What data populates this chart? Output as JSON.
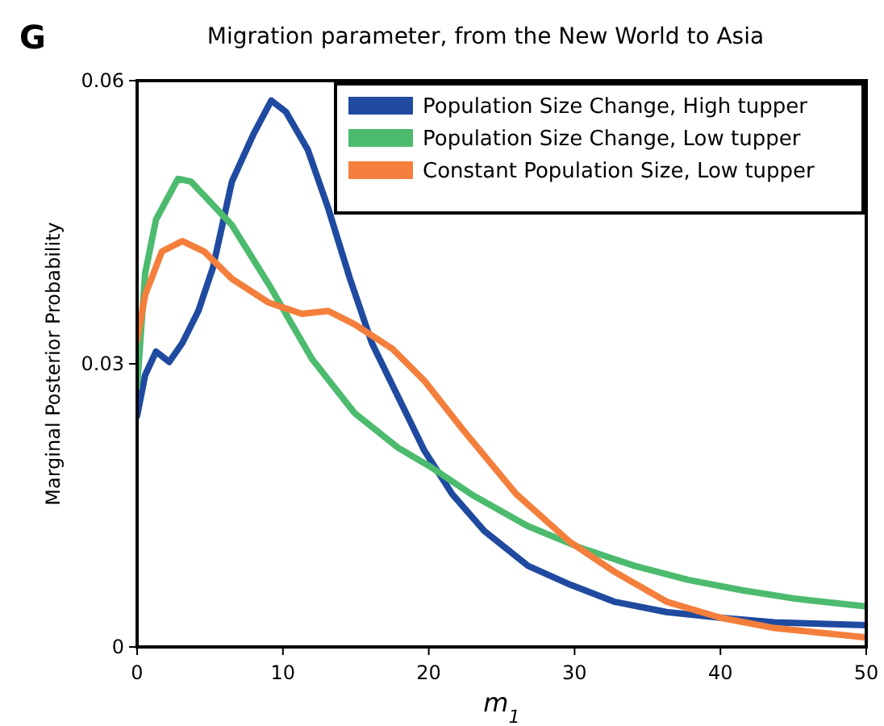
{
  "chart_data": {
    "type": "line",
    "title": "Migration parameter, from the New World to Asia",
    "xlabel": "m$_{1}$",
    "ylabel": "Marginal Posterior Probability",
    "annotations": [
      "G"
    ],
    "xlim": [
      0,
      50
    ],
    "xticks": [
      0,
      10,
      20,
      30,
      40,
      50
    ],
    "ylim": [
      0,
      0.06
    ],
    "yticks": [
      0,
      0.03,
      0.06
    ],
    "legend": "top right",
    "grid": false,
    "series": [
      {
        "name": "Population Size Change, High tupper",
        "color": "#1f4aa0",
        "x": [
          0,
          0.55,
          1.3,
          2.2,
          3.1,
          4.2,
          5.2,
          6.5,
          8,
          9.2,
          10.2,
          11.7,
          13.1,
          14.6,
          16.1,
          17.9,
          19.7,
          21.6,
          23.8,
          26.8,
          29.7,
          32.7,
          36.3,
          40,
          43.7,
          50
        ],
        "values": [
          0.0245,
          0.0288,
          0.0313,
          0.0302,
          0.0322,
          0.0356,
          0.0402,
          0.0493,
          0.0544,
          0.0579,
          0.0567,
          0.0527,
          0.0465,
          0.039,
          0.0322,
          0.0265,
          0.0208,
          0.0162,
          0.0123,
          0.0086,
          0.0066,
          0.0048,
          0.0037,
          0.0031,
          0.0026,
          0.0023
        ]
      },
      {
        "name": "Population Size Change, Low tupper",
        "color": "#4dbb6e",
        "x": [
          0,
          0.55,
          1.3,
          2.8,
          3.7,
          6.5,
          9,
          12,
          14.9,
          17.9,
          20.1,
          23.1,
          26.8,
          30.4,
          34.1,
          37.8,
          41.5,
          45.2,
          50
        ],
        "values": [
          0.0276,
          0.0396,
          0.0453,
          0.0496,
          0.0493,
          0.0447,
          0.0385,
          0.0305,
          0.0248,
          0.0211,
          0.0191,
          0.016,
          0.0128,
          0.0105,
          0.0086,
          0.0071,
          0.006,
          0.0051,
          0.0043
        ]
      },
      {
        "name": "Constant Population Size, Low tupper",
        "color": "#f47f3c",
        "x": [
          0,
          0.55,
          1.7,
          3.1,
          4.6,
          6.5,
          9,
          11.3,
          13.1,
          14.9,
          17.5,
          19.7,
          22.3,
          26,
          29.7,
          32.7,
          36.3,
          40,
          43.7,
          50
        ],
        "values": [
          0.0325,
          0.0373,
          0.0419,
          0.043,
          0.0419,
          0.039,
          0.0365,
          0.0353,
          0.0356,
          0.0342,
          0.0316,
          0.0282,
          0.0231,
          0.0162,
          0.0111,
          0.008,
          0.0048,
          0.0031,
          0.002,
          0.001
        ]
      }
    ]
  }
}
